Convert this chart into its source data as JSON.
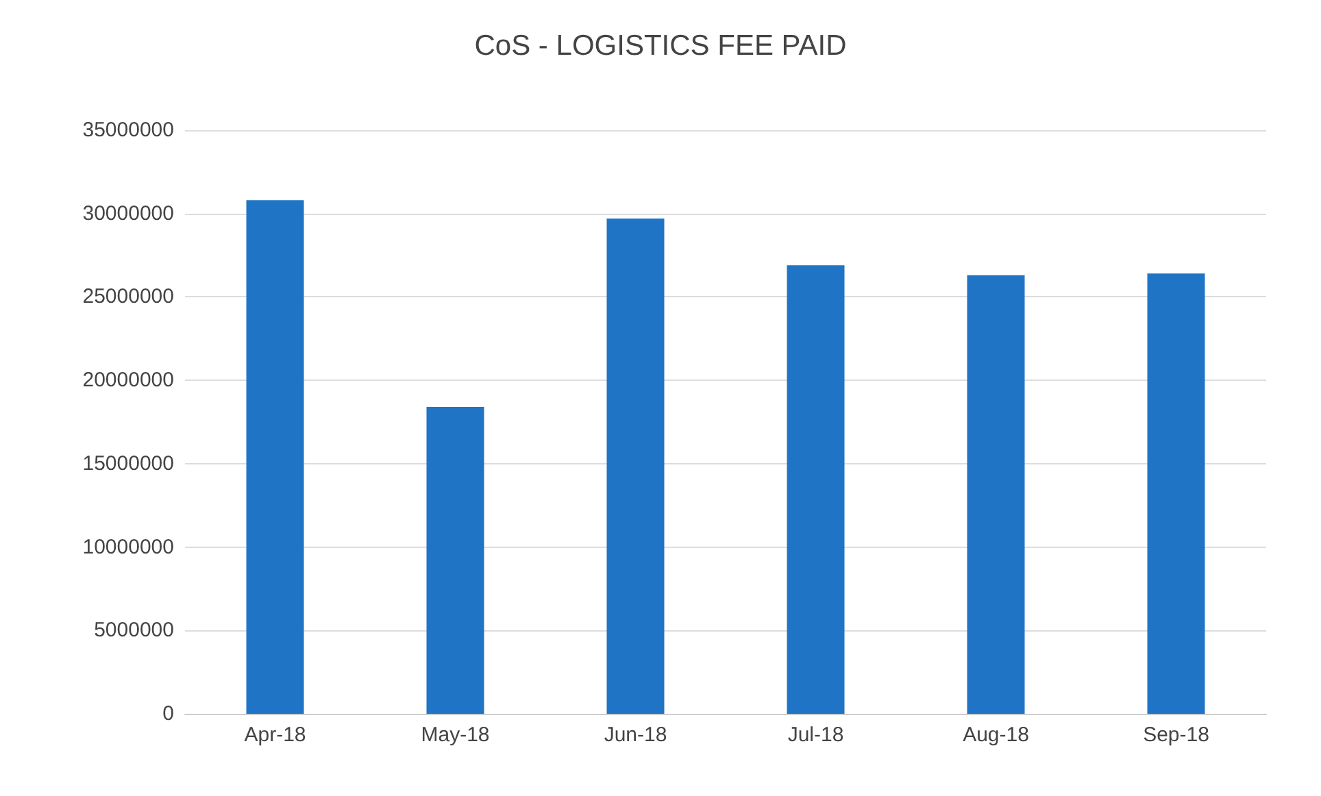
{
  "chart_data": {
    "type": "bar",
    "title": "CoS - LOGISTICS FEE PAID",
    "categories": [
      "Apr-18",
      "May-18",
      "Jun-18",
      "Jul-18",
      "Aug-18",
      "Sep-18"
    ],
    "values": [
      30800000,
      18400000,
      29700000,
      26900000,
      26300000,
      26400000
    ],
    "color": "#1f74c6",
    "ylim": [
      0,
      35000000
    ],
    "yticks": [
      0,
      5000000,
      10000000,
      15000000,
      20000000,
      25000000,
      30000000,
      35000000
    ],
    "grid": "y"
  }
}
